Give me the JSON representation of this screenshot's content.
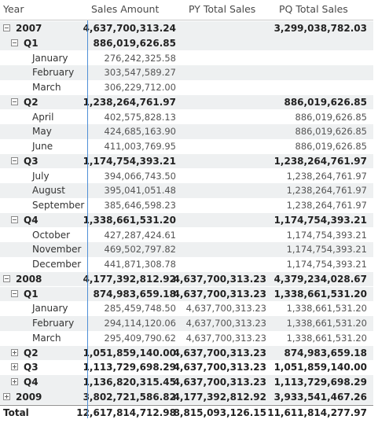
{
  "headers": {
    "year": "Year",
    "sales_amount": "Sales Amount",
    "py_total_sales": "PY Total Sales",
    "pq_total_sales": "PQ Total Sales"
  },
  "rows": [
    {
      "label": "2007",
      "level": 0,
      "toggle": "minus",
      "style": "bold",
      "shade": true,
      "sales": "4,637,700,313.24",
      "py": "",
      "pq": "3,299,038,782.03"
    },
    {
      "label": "Q1",
      "level": 1,
      "toggle": "minus",
      "style": "bold",
      "shade": true,
      "sales": "886,019,626.85",
      "py": "",
      "pq": ""
    },
    {
      "label": "January",
      "level": 2,
      "toggle": "",
      "style": "normal",
      "shade": false,
      "sales": "276,242,325.58",
      "py": "",
      "pq": ""
    },
    {
      "label": "February",
      "level": 2,
      "toggle": "",
      "style": "normal",
      "shade": true,
      "sales": "303,547,589.27",
      "py": "",
      "pq": ""
    },
    {
      "label": "March",
      "level": 2,
      "toggle": "",
      "style": "normal",
      "shade": false,
      "sales": "306,229,712.00",
      "py": "",
      "pq": ""
    },
    {
      "label": "Q2",
      "level": 1,
      "toggle": "minus",
      "style": "bold",
      "shade": true,
      "sales": "1,238,264,761.97",
      "py": "",
      "pq": "886,019,626.85"
    },
    {
      "label": "April",
      "level": 2,
      "toggle": "",
      "style": "normal",
      "shade": false,
      "sales": "402,575,828.13",
      "py": "",
      "pq": "886,019,626.85"
    },
    {
      "label": "May",
      "level": 2,
      "toggle": "",
      "style": "normal",
      "shade": true,
      "sales": "424,685,163.90",
      "py": "",
      "pq": "886,019,626.85"
    },
    {
      "label": "June",
      "level": 2,
      "toggle": "",
      "style": "normal",
      "shade": false,
      "sales": "411,003,769.95",
      "py": "",
      "pq": "886,019,626.85"
    },
    {
      "label": "Q3",
      "level": 1,
      "toggle": "minus",
      "style": "bold",
      "shade": true,
      "sales": "1,174,754,393.21",
      "py": "",
      "pq": "1,238,264,761.97"
    },
    {
      "label": "July",
      "level": 2,
      "toggle": "",
      "style": "normal",
      "shade": false,
      "sales": "394,066,743.50",
      "py": "",
      "pq": "1,238,264,761.97"
    },
    {
      "label": "August",
      "level": 2,
      "toggle": "",
      "style": "normal",
      "shade": true,
      "sales": "395,041,051.48",
      "py": "",
      "pq": "1,238,264,761.97"
    },
    {
      "label": "September",
      "level": 2,
      "toggle": "",
      "style": "normal",
      "shade": false,
      "sales": "385,646,598.23",
      "py": "",
      "pq": "1,238,264,761.97"
    },
    {
      "label": "Q4",
      "level": 1,
      "toggle": "minus",
      "style": "bold",
      "shade": true,
      "sales": "1,338,661,531.20",
      "py": "",
      "pq": "1,174,754,393.21"
    },
    {
      "label": "October",
      "level": 2,
      "toggle": "",
      "style": "normal",
      "shade": false,
      "sales": "427,287,424.61",
      "py": "",
      "pq": "1,174,754,393.21"
    },
    {
      "label": "November",
      "level": 2,
      "toggle": "",
      "style": "normal",
      "shade": true,
      "sales": "469,502,797.82",
      "py": "",
      "pq": "1,174,754,393.21"
    },
    {
      "label": "December",
      "level": 2,
      "toggle": "",
      "style": "normal",
      "shade": false,
      "sales": "441,871,308.78",
      "py": "",
      "pq": "1,174,754,393.21"
    },
    {
      "label": "2008",
      "level": 0,
      "toggle": "minus",
      "style": "bold",
      "shade": true,
      "sales": "4,177,392,812.92",
      "py": "4,637,700,313.23",
      "pq": "4,379,234,028.67"
    },
    {
      "label": "Q1",
      "level": 1,
      "toggle": "minus",
      "style": "bold",
      "shade": true,
      "sales": "874,983,659.18",
      "py": "4,637,700,313.23",
      "pq": "1,338,661,531.20"
    },
    {
      "label": "January",
      "level": 2,
      "toggle": "",
      "style": "normal",
      "shade": false,
      "sales": "285,459,748.50",
      "py": "4,637,700,313.23",
      "pq": "1,338,661,531.20"
    },
    {
      "label": "February",
      "level": 2,
      "toggle": "",
      "style": "normal",
      "shade": true,
      "sales": "294,114,120.06",
      "py": "4,637,700,313.23",
      "pq": "1,338,661,531.20"
    },
    {
      "label": "March",
      "level": 2,
      "toggle": "",
      "style": "normal",
      "shade": false,
      "sales": "295,409,790.62",
      "py": "4,637,700,313.23",
      "pq": "1,338,661,531.20"
    },
    {
      "label": "Q2",
      "level": 1,
      "toggle": "plus",
      "style": "bold",
      "shade": true,
      "sales": "1,051,859,140.00",
      "py": "4,637,700,313.23",
      "pq": "874,983,659.18"
    },
    {
      "label": "Q3",
      "level": 1,
      "toggle": "plus",
      "style": "bold",
      "shade": false,
      "sales": "1,113,729,698.29",
      "py": "4,637,700,313.23",
      "pq": "1,051,859,140.00"
    },
    {
      "label": "Q4",
      "level": 1,
      "toggle": "plus",
      "style": "bold",
      "shade": true,
      "sales": "1,136,820,315.45",
      "py": "4,637,700,313.23",
      "pq": "1,113,729,698.29"
    },
    {
      "label": "2009",
      "level": 0,
      "toggle": "plus",
      "style": "bold",
      "shade": true,
      "sales": "3,802,721,586.82",
      "py": "4,177,392,812.92",
      "pq": "3,933,541,467.26"
    },
    {
      "label": "Total",
      "level": 0,
      "toggle": "",
      "style": "total",
      "shade": false,
      "sales": "12,617,814,712.98",
      "py": "8,815,093,126.15",
      "pq": "11,611,814,277.97"
    }
  ]
}
